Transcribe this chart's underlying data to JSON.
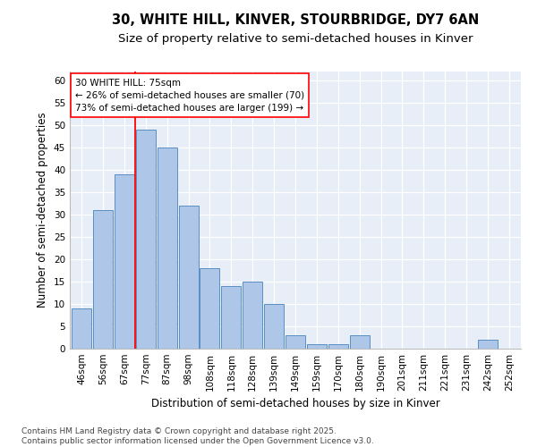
{
  "title1": "30, WHITE HILL, KINVER, STOURBRIDGE, DY7 6AN",
  "title2": "Size of property relative to semi-detached houses in Kinver",
  "xlabel": "Distribution of semi-detached houses by size in Kinver",
  "ylabel": "Number of semi-detached properties",
  "categories": [
    "46sqm",
    "56sqm",
    "67sqm",
    "77sqm",
    "87sqm",
    "98sqm",
    "108sqm",
    "118sqm",
    "128sqm",
    "139sqm",
    "149sqm",
    "159sqm",
    "170sqm",
    "180sqm",
    "190sqm",
    "201sqm",
    "211sqm",
    "221sqm",
    "231sqm",
    "242sqm",
    "252sqm"
  ],
  "values": [
    9,
    31,
    39,
    49,
    45,
    32,
    18,
    14,
    15,
    10,
    3,
    1,
    1,
    3,
    0,
    0,
    0,
    0,
    0,
    2,
    0
  ],
  "bar_color": "#aec6e8",
  "bar_edge_color": "#5a8fc2",
  "red_line_x": 2.5,
  "annotation_title": "30 WHITE HILL: 75sqm",
  "annotation_line1": "← 26% of semi-detached houses are smaller (70)",
  "annotation_line2": "73% of semi-detached houses are larger (199) →",
  "ylim": [
    0,
    62
  ],
  "yticks": [
    0,
    5,
    10,
    15,
    20,
    25,
    30,
    35,
    40,
    45,
    50,
    55,
    60
  ],
  "background_color": "#e8eef8",
  "footer": "Contains HM Land Registry data © Crown copyright and database right 2025.\nContains public sector information licensed under the Open Government Licence v3.0.",
  "title_fontsize": 10.5,
  "subtitle_fontsize": 9.5,
  "axis_label_fontsize": 8.5,
  "tick_fontsize": 7.5,
  "footer_fontsize": 6.5,
  "annotation_fontsize": 7.5
}
